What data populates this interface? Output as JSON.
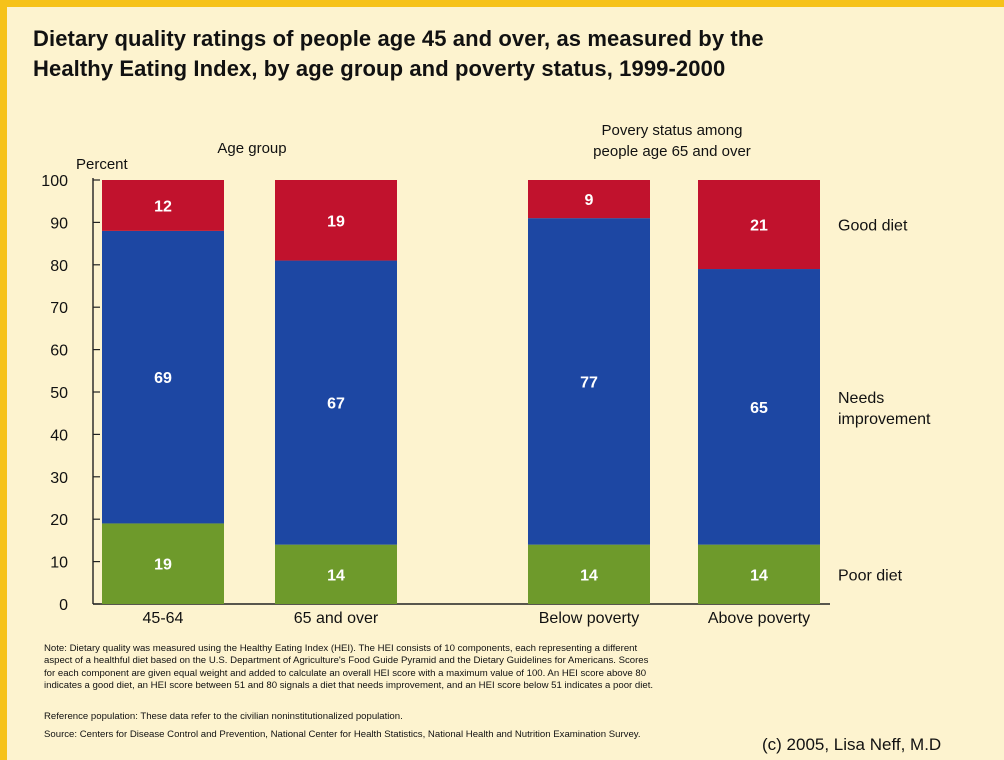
{
  "title_lines": [
    "Dietary quality ratings of people age 45 and over, as measured by the",
    "Healthy Eating Index, by age group and poverty status, 1999-2000"
  ],
  "chart_data": {
    "type": "bar",
    "stacked": true,
    "ylabel": "Percent",
    "ylim": [
      0,
      100
    ],
    "yticks": [
      0,
      10,
      20,
      30,
      40,
      50,
      60,
      70,
      80,
      90,
      100
    ],
    "groups": [
      {
        "label": "Age group",
        "categories": [
          "45-64",
          "65 and over"
        ]
      },
      {
        "label": "Povery status among\npeople age 65 and over",
        "categories": [
          "Below poverty",
          "Above poverty"
        ]
      }
    ],
    "categories": [
      "45-64",
      "65 and over",
      "Below poverty",
      "Above poverty"
    ],
    "series": [
      {
        "name": "Poor diet",
        "color": "#6e9a2b",
        "values": [
          19,
          14,
          14,
          14
        ]
      },
      {
        "name": "Needs\nimprovement",
        "color": "#1d47a3",
        "values": [
          69,
          67,
          77,
          65
        ]
      },
      {
        "name": "Good diet",
        "color": "#c1122d",
        "values": [
          12,
          19,
          9,
          21
        ]
      }
    ],
    "legend": "right, inline with bars"
  },
  "notes": [
    "Note: Dietary quality was measured using the Healthy Eating Index (HEI). The HEI consists of 10 components, each representing a different",
    "aspect of a healthful diet based on the U.S. Department of Agriculture's Food Guide Pyramid and the Dietary Guidelines for Americans. Scores",
    "for each component are given equal weight and added to calculate an overall HEI score with a maximum value of 100.  An HEI score above 80",
    "indicates a good diet, an HEI score between 51 and 80 signals a diet that needs improvement, and an HEI score below 51 indicates a poor diet."
  ],
  "reference": "Reference population: These data refer to the civilian noninstitutionalized population.",
  "source": "Source: Centers for Disease Control and Prevention, National Center for Health Statistics, National Health and Nutrition Examination Survey.",
  "credit": "(c) 2005, Lisa Neff, M.D"
}
